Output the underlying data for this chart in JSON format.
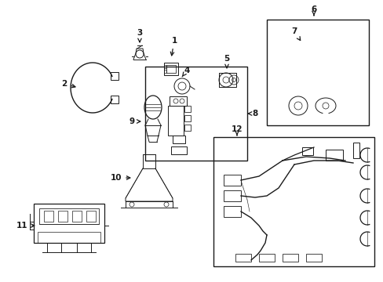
{
  "bg_color": "#ffffff",
  "line_color": "#1a1a1a",
  "fig_width": 4.89,
  "fig_height": 3.6,
  "dpi": 100,
  "lw": 0.7,
  "label_fs": 7.5
}
